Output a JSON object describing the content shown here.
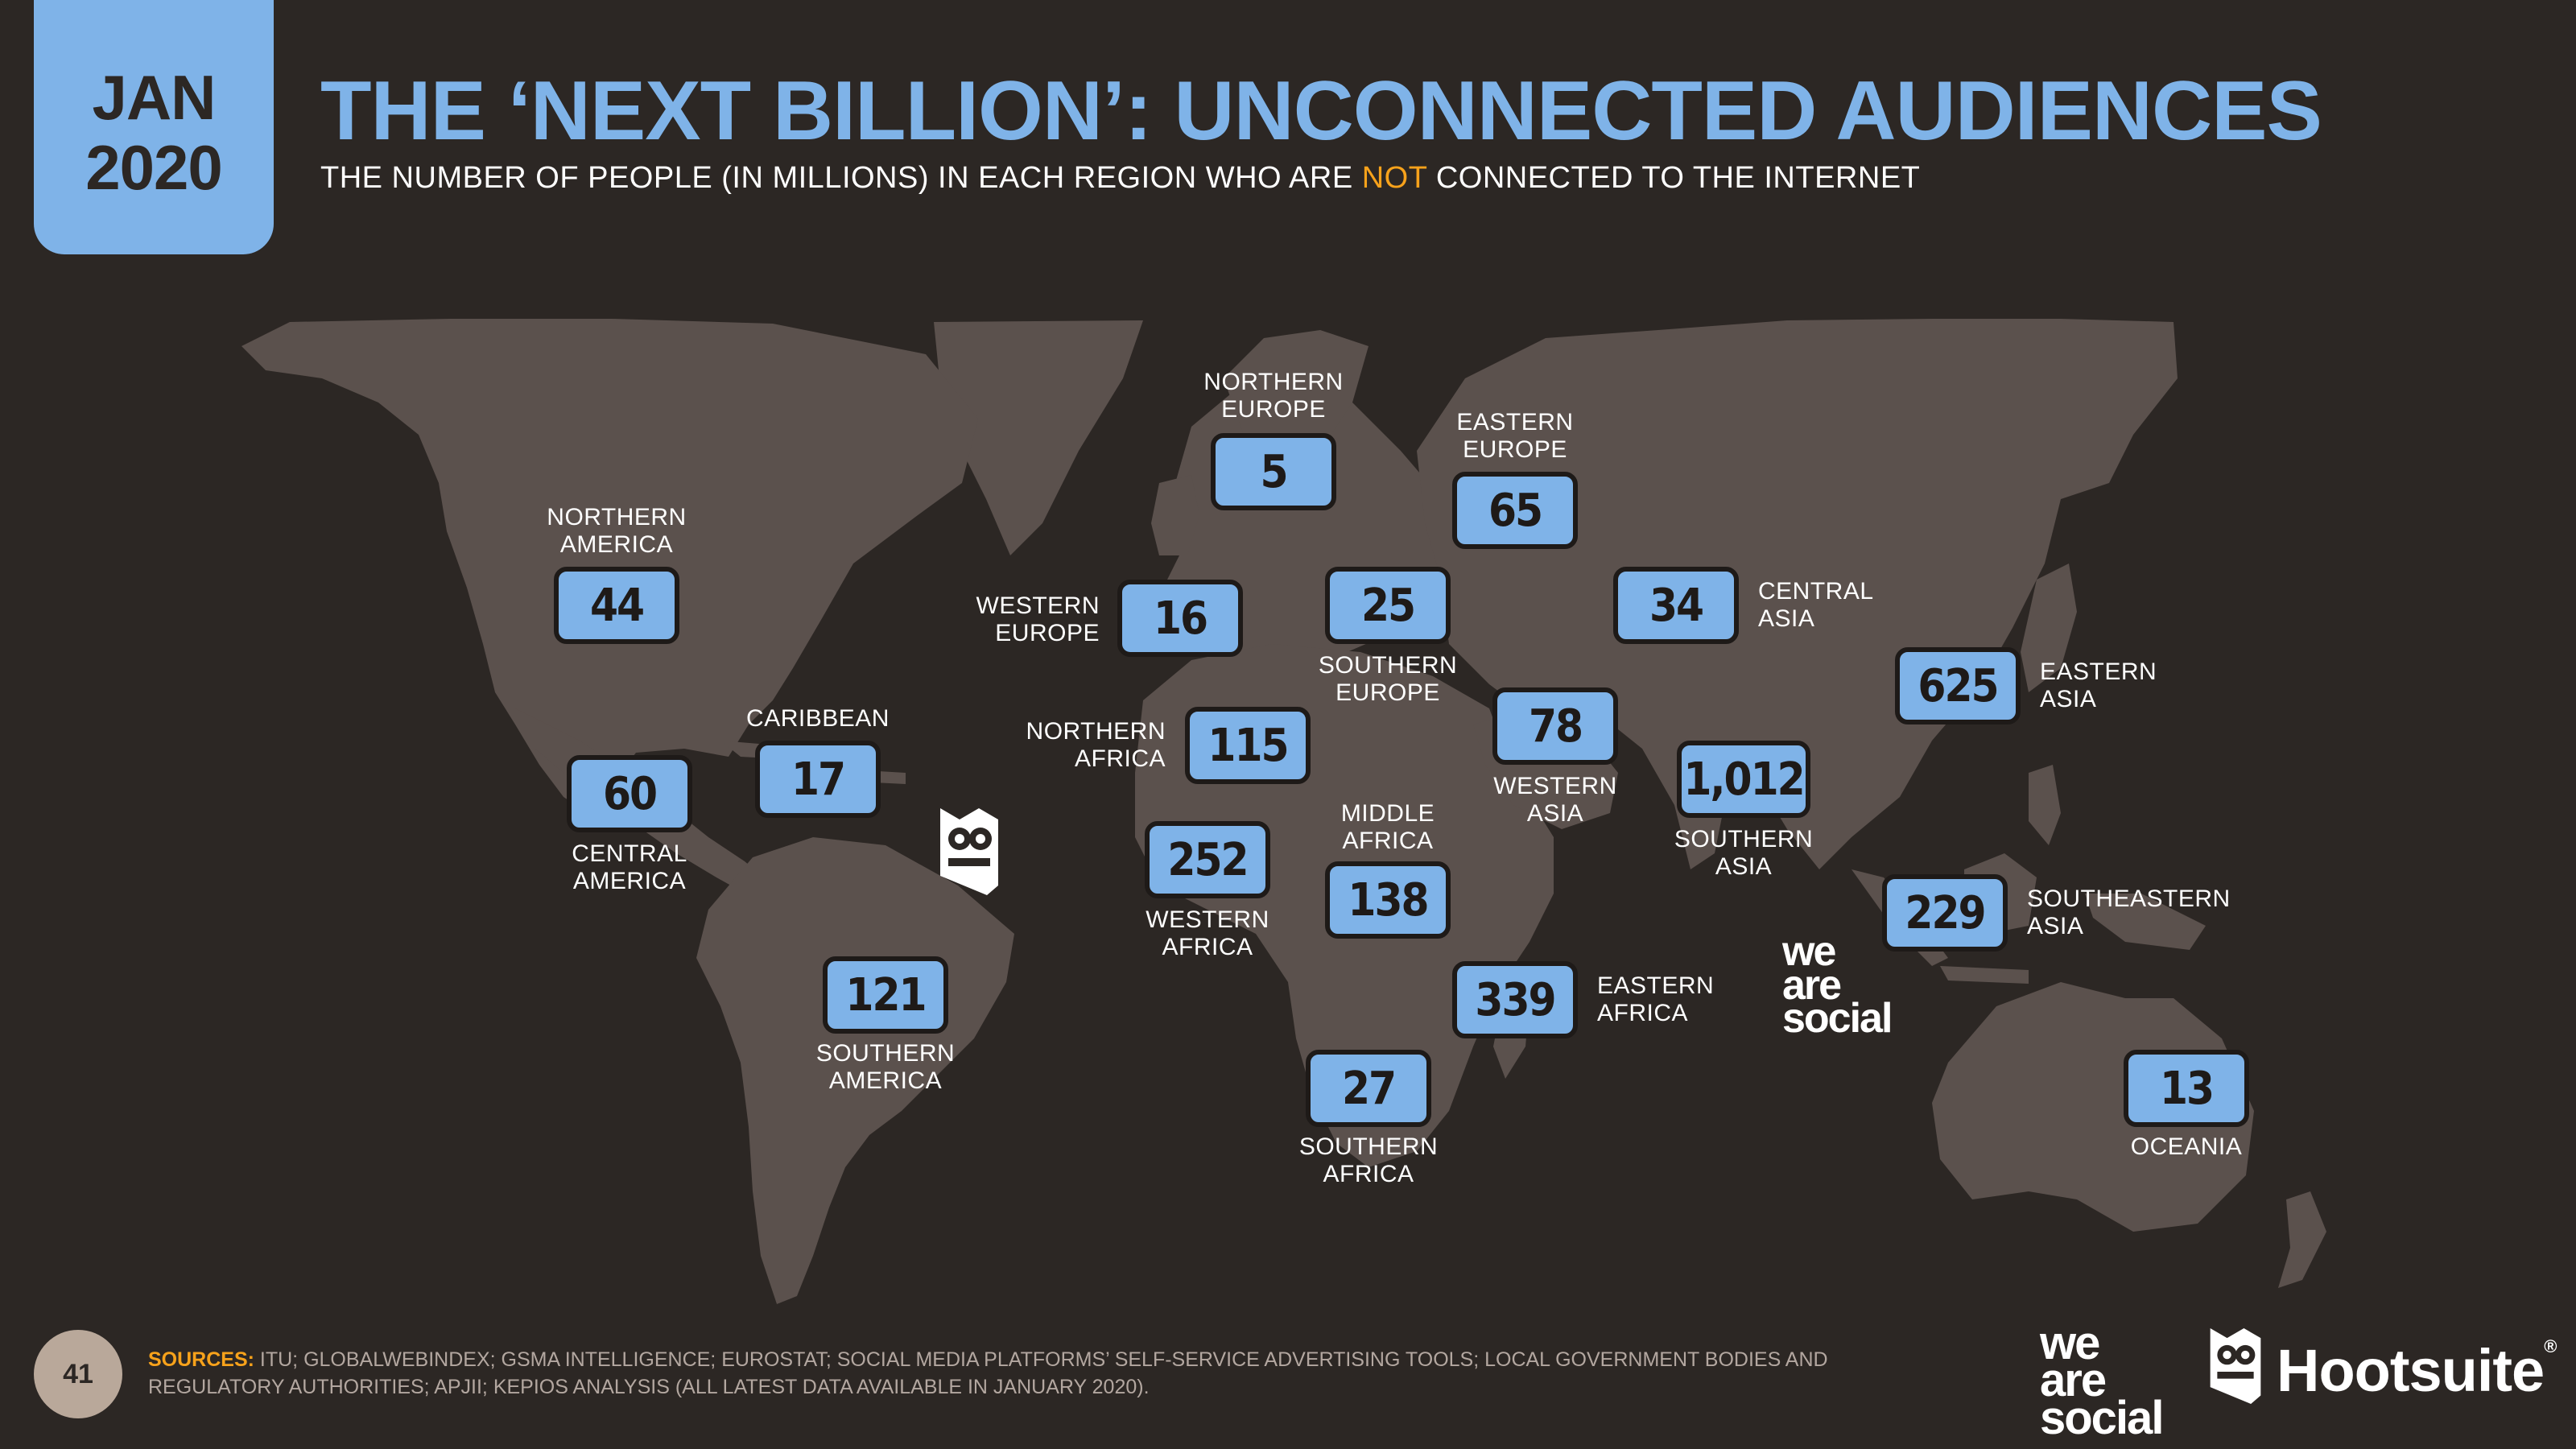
{
  "header": {
    "date_month": "JAN",
    "date_year": "2020",
    "title": "THE ‘NEXT BILLION’: UNCONNECTED AUDIENCES",
    "subtitle_before": "THE NUMBER OF PEOPLE (IN MILLIONS) IN EACH REGION WHO ARE ",
    "subtitle_highlight": "NOT",
    "subtitle_after": " CONNECTED TO THE INTERNET"
  },
  "colors": {
    "background": "#2c2724",
    "land": "#5b514d",
    "accent_blue": "#7fb3e8",
    "highlight_orange": "#f7a21b"
  },
  "regions": [
    {
      "label": "NORTHERN AMERICA",
      "value": "44"
    },
    {
      "label": "CENTRAL AMERICA",
      "value": "60"
    },
    {
      "label": "CARIBBEAN",
      "value": "17"
    },
    {
      "label": "SOUTHERN AMERICA",
      "value": "121"
    },
    {
      "label": "NORTHERN EUROPE",
      "value": "5"
    },
    {
      "label": "WESTERN EUROPE",
      "value": "16"
    },
    {
      "label": "SOUTHERN EUROPE",
      "value": "25"
    },
    {
      "label": "EASTERN EUROPE",
      "value": "65"
    },
    {
      "label": "NORTHERN AFRICA",
      "value": "115"
    },
    {
      "label": "WESTERN AFRICA",
      "value": "252"
    },
    {
      "label": "MIDDLE AFRICA",
      "value": "138"
    },
    {
      "label": "EASTERN AFRICA",
      "value": "339"
    },
    {
      "label": "SOUTHERN AFRICA",
      "value": "27"
    },
    {
      "label": "WESTERN ASIA",
      "value": "78"
    },
    {
      "label": "CENTRAL ASIA",
      "value": "34"
    },
    {
      "label": "SOUTHERN ASIA",
      "value": "1,012"
    },
    {
      "label": "EASTERN ASIA",
      "value": "625"
    },
    {
      "label": "SOUTHEASTERN ASIA",
      "value": "229"
    },
    {
      "label": "OCEANIA",
      "value": "13"
    }
  ],
  "footer": {
    "page_number": "41",
    "sources_key": "SOURCES:",
    "sources_text": " ITU; GLOBALWEBINDEX; GSMA INTELLIGENCE; EUROSTAT; SOCIAL MEDIA PLATFORMS’ SELF-SERVICE ADVERTISING TOOLS; LOCAL GOVERNMENT BODIES AND REGULATORY AUTHORITIES; APJII; KEPIOS ANALYSIS (ALL LATEST DATA AVAILABLE IN JANUARY 2020).",
    "brand_was": [
      "we",
      "are",
      "social"
    ],
    "brand_hootsuite": "Hootsuite",
    "brand_hootsuite_reg": "®"
  },
  "icons": {
    "watermark_owl": "hootsuite-owl-icon",
    "footer_owl": "hootsuite-owl-icon"
  }
}
